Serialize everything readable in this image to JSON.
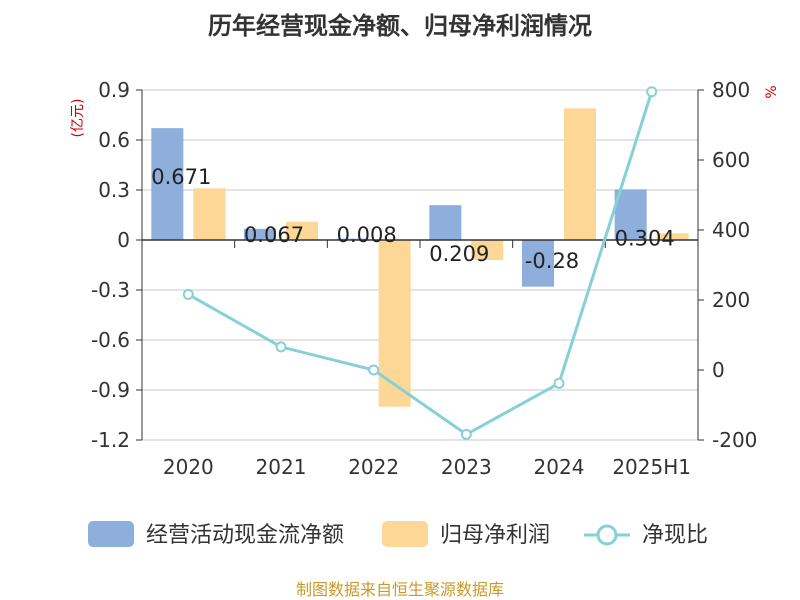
{
  "title": "历年经营现金净额、归母净利润情况",
  "source": "制图数据来自恒生聚源数据库",
  "colors": {
    "cash": "#8eaedc",
    "profit": "#fdd795",
    "ratio": "#86d0d6",
    "unit_red": "#cc0000",
    "source_text": "#c79a2c",
    "axis": "#333333",
    "grid": "#c8c8c8"
  },
  "chart_data": {
    "type": "bar",
    "categories": [
      "2020",
      "2021",
      "2022",
      "2023",
      "2024",
      "2025H1"
    ],
    "left_axis": {
      "unit": "(亿元)",
      "ylim": [
        -1.2,
        0.9
      ],
      "ticks": [
        "0.9",
        "0.6",
        "0.3",
        "0",
        "-0.3",
        "-0.6",
        "-0.9",
        "-1.2"
      ],
      "tick_values": [
        0.9,
        0.6,
        0.3,
        0,
        -0.3,
        -0.6,
        -0.9,
        -1.2
      ]
    },
    "right_axis": {
      "unit": "%",
      "ylim": [
        -200,
        800
      ],
      "ticks": [
        "800",
        "600",
        "400",
        "200",
        "0",
        "-200"
      ],
      "tick_values": [
        800,
        600,
        400,
        200,
        0,
        -200
      ]
    },
    "grid": true,
    "legend_position": "bottom",
    "series": [
      {
        "name": "经营活动现金流净额",
        "type": "bar",
        "axis": "left",
        "values": [
          0.671,
          0.067,
          0.008,
          0.209,
          -0.28,
          0.304
        ],
        "labels": [
          "0.671",
          "0.067",
          "0.008",
          "0.209",
          "-0.28",
          "0.304"
        ]
      },
      {
        "name": "归母净利润",
        "type": "bar",
        "axis": "left",
        "values": [
          0.31,
          0.11,
          -1.0,
          -0.12,
          0.79,
          0.04
        ]
      },
      {
        "name": "净现比",
        "type": "line",
        "axis": "right",
        "values": [
          216,
          66,
          0,
          -184,
          -38,
          795
        ]
      }
    ]
  }
}
